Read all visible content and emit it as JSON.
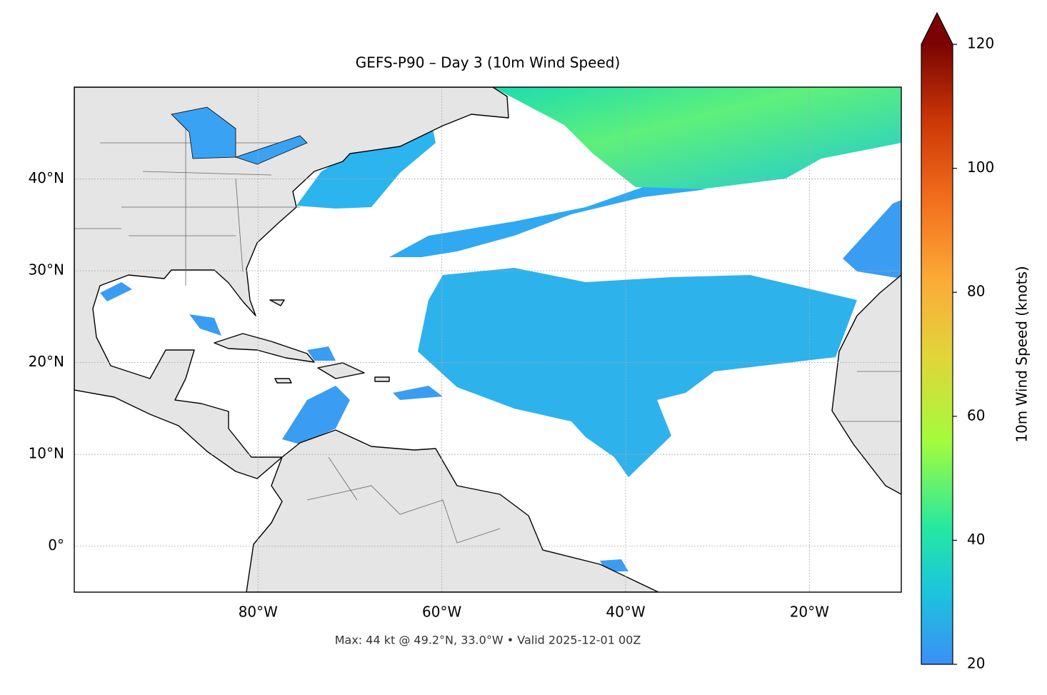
{
  "title": "GEFS-P90 – Day 3 (10m Wind Speed)",
  "footer": "Max: 44 kt @ 49.2°N, 33.0°W • Valid 2025-12-01 00Z",
  "map": {
    "lon_range": [
      -100,
      -10
    ],
    "lat_range": [
      -5,
      50
    ],
    "lon_ticks": [
      {
        "value": -80,
        "label": "80°W"
      },
      {
        "value": -60,
        "label": "60°W"
      },
      {
        "value": -40,
        "label": "40°W"
      },
      {
        "value": -20,
        "label": "20°W"
      }
    ],
    "lat_ticks": [
      {
        "value": 0,
        "label": "0°"
      },
      {
        "value": 10,
        "label": "10°N"
      },
      {
        "value": 20,
        "label": "20°N"
      },
      {
        "value": 30,
        "label": "30°N"
      },
      {
        "value": 40,
        "label": "40°N"
      }
    ],
    "grid": true
  },
  "colorbar": {
    "label": "10m Wind Speed (knots)",
    "range": [
      20,
      120
    ],
    "ticks": [
      20,
      40,
      60,
      80,
      100,
      120
    ],
    "extend": "max"
  }
}
